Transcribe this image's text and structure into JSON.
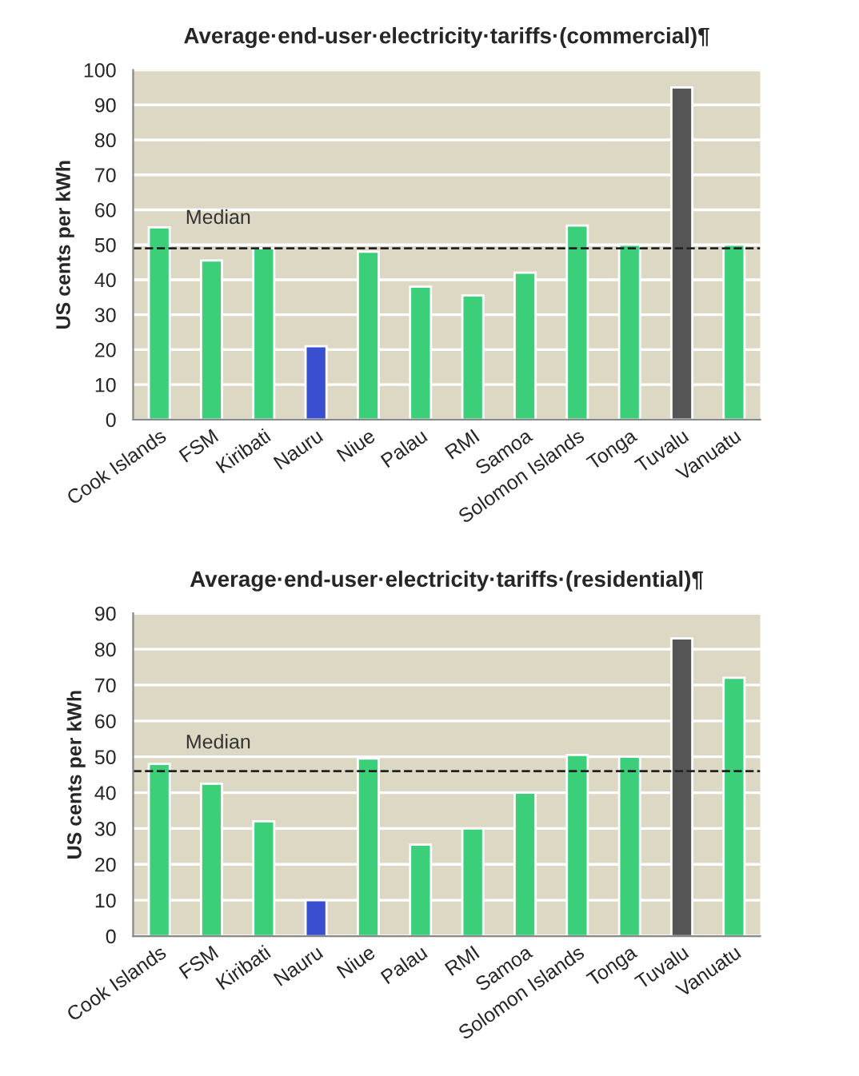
{
  "chart_data": [
    {
      "type": "bar",
      "title": "Average·end-user·electricity·tariffs·(commercial)¶",
      "ylabel": "US cents per kWh",
      "categories": [
        "Cook Islands",
        "FSM",
        "Kiribati",
        "Nauru",
        "Niue",
        "Palau",
        "RMI",
        "Samoa",
        "Solomon Islands",
        "Tonga",
        "Tuvalu",
        "Vanuatu"
      ],
      "values": [
        55,
        45.5,
        49,
        21,
        48,
        38,
        35.5,
        42,
        55.5,
        50,
        95,
        50
      ],
      "colors": [
        "#3acf78",
        "#3acf78",
        "#3acf78",
        "#3a4fcf",
        "#3acf78",
        "#3acf78",
        "#3acf78",
        "#3acf78",
        "#3acf78",
        "#3acf78",
        "#555555",
        "#3acf78"
      ],
      "ylim": [
        0,
        100
      ],
      "yticks": [
        0,
        10,
        20,
        30,
        40,
        50,
        60,
        70,
        80,
        90,
        100
      ],
      "grid": "y",
      "ref_lines": [
        {
          "axis": "y",
          "value": 49,
          "label": "Median",
          "color": "#222222",
          "line_style": "dashed"
        }
      ]
    },
    {
      "type": "bar",
      "title": "Average·end-user·electricity·tariffs·(residential)¶",
      "ylabel": "US cents per kWh",
      "categories": [
        "Cook Islands",
        "FSM",
        "Kiribati",
        "Nauru",
        "Niue",
        "Palau",
        "RMI",
        "Samoa",
        "Solomon Islands",
        "Tonga",
        "Tuvalu",
        "Vanuatu"
      ],
      "values": [
        48,
        42.5,
        32,
        10,
        49.5,
        25.5,
        30,
        40,
        50.5,
        50,
        83,
        72
      ],
      "colors": [
        "#3acf78",
        "#3acf78",
        "#3acf78",
        "#3a4fcf",
        "#3acf78",
        "#3acf78",
        "#3acf78",
        "#3acf78",
        "#3acf78",
        "#3acf78",
        "#555555",
        "#3acf78"
      ],
      "ylim": [
        0,
        90
      ],
      "yticks": [
        0,
        10,
        20,
        30,
        40,
        50,
        60,
        70,
        80,
        90
      ],
      "grid": "y",
      "ref_lines": [
        {
          "axis": "y",
          "value": 46,
          "label": "Median",
          "color": "#222222",
          "line_style": "dashed"
        }
      ]
    }
  ]
}
